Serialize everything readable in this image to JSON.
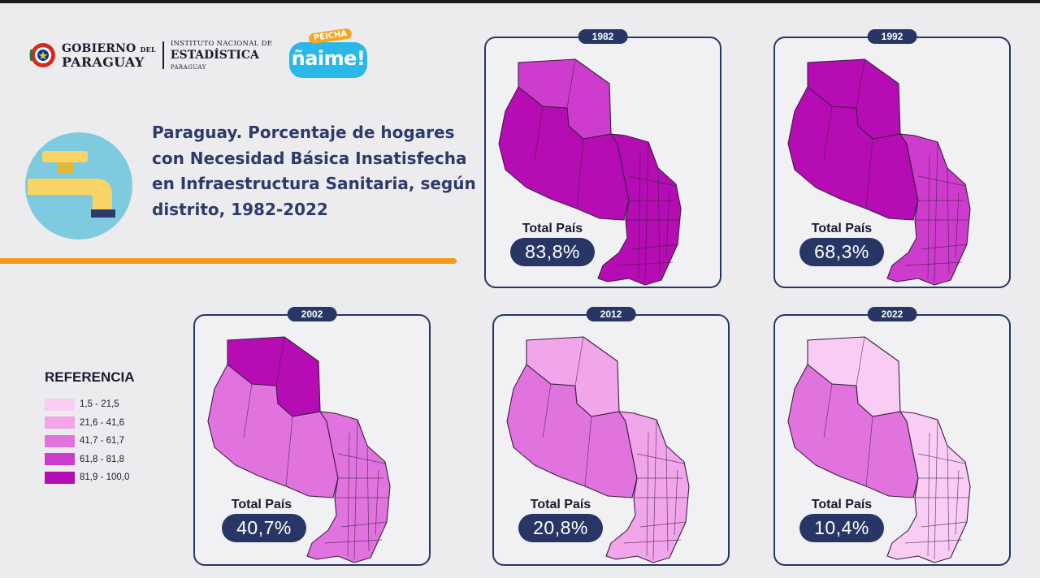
{
  "header": {
    "gov_line1": "GOBIERNO",
    "gov_line1_small": "DEL",
    "gov_line2": "PARAGUAY",
    "ine_line1": "INSTITUTO NACIONAL DE",
    "ine_line2": "ESTADÍSTICA",
    "ine_line3": "PARAGUAY",
    "campaign_top": "PÉICHA",
    "campaign_main": "ñaime!"
  },
  "title": "Paraguay. Porcentaje de hogares con Necesidad Básica Insatisfecha en Infraestructura Sanitaria, según distrito, 1982-2022",
  "legend": {
    "title": "REFERENCIA",
    "items": [
      {
        "label": "1,5 - 21,5",
        "color": "#f9cdf3"
      },
      {
        "label": "21,6 - 41,6",
        "color": "#f1a5ea"
      },
      {
        "label": "41,7 - 61,7",
        "color": "#e173de"
      },
      {
        "label": "61,8 - 81,8",
        "color": "#cd3ccd"
      },
      {
        "label": "81,9 - 100,0",
        "color": "#b50db3"
      }
    ]
  },
  "maps": [
    {
      "year": "1982",
      "total_label": "Total País",
      "total_value": "83,8%",
      "west": 4,
      "alto": 3,
      "east": 4
    },
    {
      "year": "1992",
      "total_label": "Total País",
      "total_value": "68,3%",
      "west": 4,
      "alto": 4,
      "east": 3
    },
    {
      "year": "2002",
      "total_label": "Total País",
      "total_value": "40,7%",
      "west": 2,
      "alto": 4,
      "east": 2
    },
    {
      "year": "2012",
      "total_label": "Total País",
      "total_value": "20,8%",
      "west": 2,
      "alto": 1,
      "east": 1
    },
    {
      "year": "2022",
      "total_label": "Total País",
      "total_value": "10,4%",
      "west": 2,
      "alto": 0,
      "east": 0
    }
  ],
  "colors": {
    "navy": "#283666",
    "orange": "#f39a1e",
    "campaign_blue": "#29b8e8"
  }
}
